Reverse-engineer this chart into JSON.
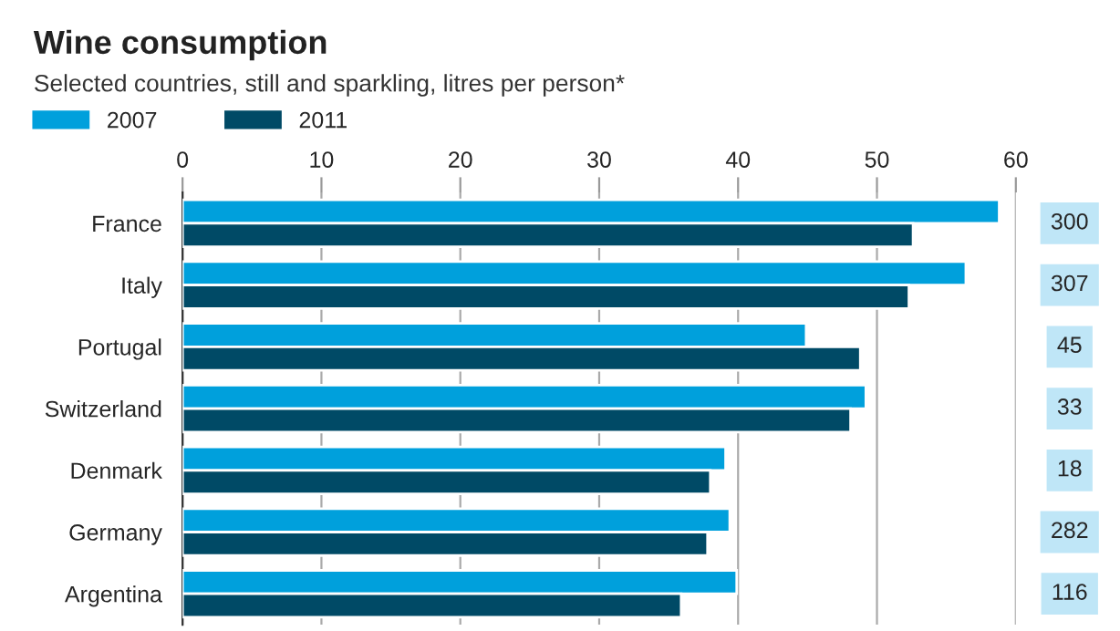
{
  "chart_data": {
    "type": "bar",
    "orientation": "horizontal",
    "title": "Wine consumption",
    "subtitle": "Selected countries, still and sparkling, litres per person*",
    "categories": [
      "France",
      "Italy",
      "Portugal",
      "Switzerland",
      "Denmark",
      "Germany",
      "Argentina"
    ],
    "series": [
      {
        "name": "2007",
        "color": "#00a0dc",
        "values": [
          58.8,
          56.4,
          44.9,
          49.2,
          39.1,
          39.4,
          39.9
        ]
      },
      {
        "name": "2011",
        "color": "#004a66",
        "values": [
          52.6,
          52.3,
          48.8,
          48.1,
          38.0,
          37.8,
          35.9
        ]
      }
    ],
    "xlim": [
      0,
      60
    ],
    "xticks": [
      0,
      10,
      20,
      30,
      40,
      50,
      60
    ],
    "grid": "x",
    "legend": "top left",
    "annotations": [
      "300",
      "307",
      "45",
      "33",
      "18",
      "282",
      "116"
    ]
  }
}
